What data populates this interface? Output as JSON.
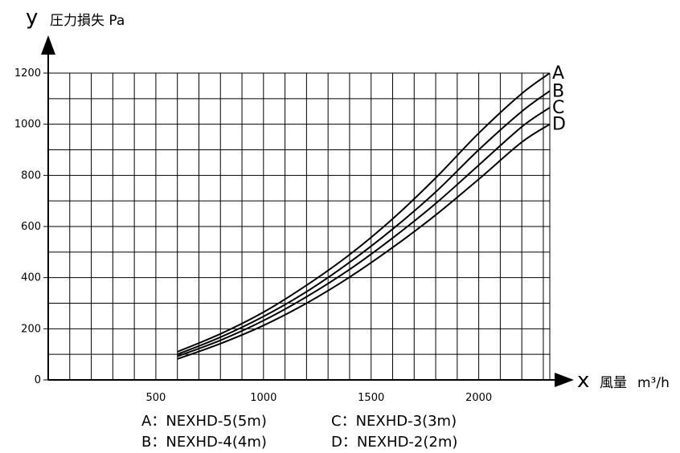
{
  "chart_data": {
    "type": "line",
    "y_axis": {
      "symbol": "y",
      "label": "圧力損失 Pa",
      "ticks": [
        0,
        200,
        400,
        600,
        800,
        1000,
        1200
      ],
      "ylim": [
        0,
        1200
      ]
    },
    "x_axis": {
      "symbol": "x",
      "label": "風量",
      "unit": "m³/h",
      "ticks": [
        500,
        1000,
        1500,
        2000
      ],
      "xlim": [
        0,
        2330
      ]
    },
    "grid": true,
    "series": [
      {
        "name": "A",
        "x": [
          600,
          800,
          1000,
          1200,
          1400,
          1600,
          1800,
          2000,
          2200,
          2330
        ],
        "y": [
          110,
          180,
          265,
          370,
          490,
          630,
          790,
          965,
          1120,
          1200
        ]
      },
      {
        "name": "B",
        "x": [
          600,
          800,
          1000,
          1200,
          1400,
          1600,
          1800,
          2000,
          2200,
          2330
        ],
        "y": [
          100,
          167,
          248,
          345,
          460,
          590,
          735,
          900,
          1050,
          1130
        ]
      },
      {
        "name": "C",
        "x": [
          600,
          800,
          1000,
          1200,
          1400,
          1600,
          1800,
          2000,
          2200,
          2330
        ],
        "y": [
          92,
          155,
          232,
          325,
          432,
          555,
          690,
          840,
          990,
          1065
        ]
      },
      {
        "name": "D",
        "x": [
          600,
          800,
          1000,
          1200,
          1400,
          1600,
          1800,
          2000,
          2200,
          2330
        ],
        "y": [
          82,
          142,
          213,
          300,
          402,
          518,
          645,
          785,
          930,
          1000
        ]
      }
    ],
    "legend": [
      {
        "letter": "A",
        "sep": "：",
        "text": "NEXHD-5(5m)"
      },
      {
        "letter": "B",
        "sep": "：",
        "text": "NEXHD-4(4m)"
      },
      {
        "letter": "C",
        "sep": "：",
        "text": "NEXHD-3(3m)"
      },
      {
        "letter": "D",
        "sep": "：",
        "text": "NEXHD-2(2m)"
      }
    ]
  }
}
